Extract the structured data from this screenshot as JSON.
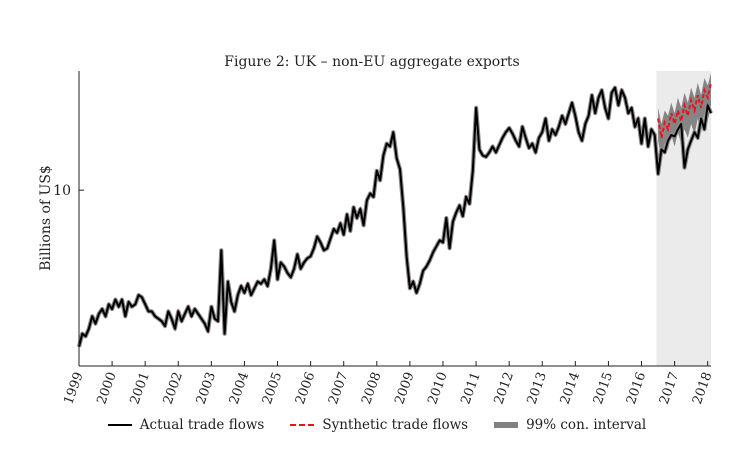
{
  "chart_data": {
    "type": "line",
    "title": "Figure 2: UK – non-EU aggregate exports",
    "ylabel": "Billions of US$",
    "xlabel": "",
    "yscale": "log",
    "ylim": [
      5.9,
      14.3
    ],
    "xlim": [
      1999.0,
      2018.1
    ],
    "y_tick_values": [
      10
    ],
    "y_tick_labels": [
      "10"
    ],
    "x_ticks": [
      {
        "value": 1999,
        "label": "1999"
      },
      {
        "value": 2000,
        "label": "2000"
      },
      {
        "value": 2001,
        "label": "2001"
      },
      {
        "value": 2002,
        "label": "2002"
      },
      {
        "value": 2003,
        "label": "2003"
      },
      {
        "value": 2004,
        "label": "2004"
      },
      {
        "value": 2005,
        "label": "2005"
      },
      {
        "value": 2006,
        "label": "2006"
      },
      {
        "value": 2007,
        "label": "2007"
      },
      {
        "value": 2008,
        "label": "2008"
      },
      {
        "value": 2009,
        "label": "2009"
      },
      {
        "value": 2010,
        "label": "2010"
      },
      {
        "value": 2011,
        "label": "2011"
      },
      {
        "value": 2012,
        "label": "2012"
      },
      {
        "value": 2013,
        "label": "2013"
      },
      {
        "value": 2014,
        "label": "2014"
      },
      {
        "value": 2015,
        "label": "2015"
      },
      {
        "value": 2016,
        "label": "2016"
      },
      {
        "value": 2017,
        "label": "2017"
      },
      {
        "value": 2018,
        "label": "2018"
      }
    ],
    "shaded_region": {
      "x_start": 2016.45,
      "x_end": 2018.1,
      "color": "#ebebeb"
    },
    "colors": {
      "actual": "#000000",
      "synthetic": "#e8141c",
      "band": "#7f7f7f"
    },
    "series": [
      {
        "name": "Actual trade flows",
        "style": "solid",
        "points": [
          [
            1999.0,
            6.25
          ],
          [
            1999.1,
            6.5
          ],
          [
            1999.2,
            6.45
          ],
          [
            1999.3,
            6.6
          ],
          [
            1999.4,
            6.85
          ],
          [
            1999.5,
            6.7
          ],
          [
            1999.6,
            6.9
          ],
          [
            1999.7,
            7.0
          ],
          [
            1999.8,
            6.85
          ],
          [
            1999.9,
            7.1
          ],
          [
            2000.0,
            7.0
          ],
          [
            2000.1,
            7.2
          ],
          [
            2000.2,
            7.05
          ],
          [
            2000.3,
            7.2
          ],
          [
            2000.4,
            6.85
          ],
          [
            2000.5,
            7.15
          ],
          [
            2000.6,
            7.05
          ],
          [
            2000.7,
            7.1
          ],
          [
            2000.8,
            7.3
          ],
          [
            2000.9,
            7.25
          ],
          [
            2001.0,
            7.1
          ],
          [
            2001.1,
            6.95
          ],
          [
            2001.2,
            6.95
          ],
          [
            2001.3,
            6.85
          ],
          [
            2001.4,
            6.8
          ],
          [
            2001.5,
            6.75
          ],
          [
            2001.6,
            6.65
          ],
          [
            2001.7,
            6.95
          ],
          [
            2001.8,
            6.8
          ],
          [
            2001.9,
            6.6
          ],
          [
            2002.0,
            6.95
          ],
          [
            2002.1,
            6.75
          ],
          [
            2002.2,
            6.9
          ],
          [
            2002.3,
            7.05
          ],
          [
            2002.4,
            6.85
          ],
          [
            2002.5,
            7.0
          ],
          [
            2002.6,
            6.9
          ],
          [
            2002.7,
            6.8
          ],
          [
            2002.8,
            6.7
          ],
          [
            2002.9,
            6.55
          ],
          [
            2003.0,
            7.05
          ],
          [
            2003.1,
            6.8
          ],
          [
            2003.2,
            6.75
          ],
          [
            2003.3,
            8.35
          ],
          [
            2003.4,
            6.5
          ],
          [
            2003.5,
            7.6
          ],
          [
            2003.6,
            7.15
          ],
          [
            2003.7,
            6.95
          ],
          [
            2003.8,
            7.3
          ],
          [
            2003.9,
            7.5
          ],
          [
            2004.0,
            7.35
          ],
          [
            2004.1,
            7.55
          ],
          [
            2004.2,
            7.3
          ],
          [
            2004.3,
            7.45
          ],
          [
            2004.4,
            7.6
          ],
          [
            2004.5,
            7.55
          ],
          [
            2004.6,
            7.65
          ],
          [
            2004.7,
            7.5
          ],
          [
            2004.8,
            7.9
          ],
          [
            2004.9,
            8.6
          ],
          [
            2005.0,
            7.65
          ],
          [
            2005.1,
            8.05
          ],
          [
            2005.2,
            7.95
          ],
          [
            2005.3,
            7.8
          ],
          [
            2005.4,
            7.7
          ],
          [
            2005.5,
            7.9
          ],
          [
            2005.6,
            8.25
          ],
          [
            2005.7,
            7.9
          ],
          [
            2005.8,
            8.05
          ],
          [
            2005.9,
            8.15
          ],
          [
            2006.0,
            8.2
          ],
          [
            2006.1,
            8.4
          ],
          [
            2006.2,
            8.7
          ],
          [
            2006.3,
            8.55
          ],
          [
            2006.4,
            8.35
          ],
          [
            2006.5,
            8.4
          ],
          [
            2006.6,
            8.65
          ],
          [
            2006.7,
            8.9
          ],
          [
            2006.8,
            8.8
          ],
          [
            2006.9,
            9.05
          ],
          [
            2007.0,
            8.75
          ],
          [
            2007.1,
            9.3
          ],
          [
            2007.2,
            8.85
          ],
          [
            2007.3,
            9.5
          ],
          [
            2007.4,
            9.2
          ],
          [
            2007.5,
            9.45
          ],
          [
            2007.6,
            9.0
          ],
          [
            2007.7,
            9.7
          ],
          [
            2007.8,
            9.9
          ],
          [
            2007.9,
            9.8
          ],
          [
            2008.0,
            10.6
          ],
          [
            2008.1,
            10.3
          ],
          [
            2008.2,
            11.1
          ],
          [
            2008.3,
            11.5
          ],
          [
            2008.4,
            11.4
          ],
          [
            2008.5,
            11.9
          ],
          [
            2008.6,
            11.0
          ],
          [
            2008.7,
            10.65
          ],
          [
            2008.8,
            9.5
          ],
          [
            2008.9,
            8.2
          ],
          [
            2009.0,
            7.45
          ],
          [
            2009.1,
            7.6
          ],
          [
            2009.2,
            7.35
          ],
          [
            2009.3,
            7.55
          ],
          [
            2009.4,
            7.85
          ],
          [
            2009.5,
            7.95
          ],
          [
            2009.6,
            8.1
          ],
          [
            2009.7,
            8.3
          ],
          [
            2009.8,
            8.45
          ],
          [
            2009.9,
            8.6
          ],
          [
            2010.0,
            8.55
          ],
          [
            2010.1,
            9.2
          ],
          [
            2010.2,
            8.4
          ],
          [
            2010.3,
            9.1
          ],
          [
            2010.4,
            9.35
          ],
          [
            2010.5,
            9.55
          ],
          [
            2010.6,
            9.25
          ],
          [
            2010.7,
            9.8
          ],
          [
            2010.8,
            9.6
          ],
          [
            2010.9,
            10.6
          ],
          [
            2011.0,
            12.8
          ],
          [
            2011.1,
            11.3
          ],
          [
            2011.2,
            11.1
          ],
          [
            2011.3,
            11.05
          ],
          [
            2011.4,
            11.2
          ],
          [
            2011.5,
            11.4
          ],
          [
            2011.6,
            11.2
          ],
          [
            2011.7,
            11.45
          ],
          [
            2011.8,
            11.7
          ],
          [
            2011.9,
            11.9
          ],
          [
            2012.0,
            12.05
          ],
          [
            2012.1,
            11.85
          ],
          [
            2012.2,
            11.6
          ],
          [
            2012.3,
            11.4
          ],
          [
            2012.4,
            12.1
          ],
          [
            2012.5,
            11.7
          ],
          [
            2012.6,
            11.35
          ],
          [
            2012.7,
            11.5
          ],
          [
            2012.8,
            11.2
          ],
          [
            2012.9,
            11.7
          ],
          [
            2013.0,
            11.9
          ],
          [
            2013.1,
            12.4
          ],
          [
            2013.2,
            11.6
          ],
          [
            2013.3,
            12.0
          ],
          [
            2013.4,
            11.8
          ],
          [
            2013.5,
            12.1
          ],
          [
            2013.6,
            12.5
          ],
          [
            2013.7,
            12.2
          ],
          [
            2013.8,
            12.6
          ],
          [
            2013.9,
            13.0
          ],
          [
            2014.0,
            12.5
          ],
          [
            2014.1,
            11.9
          ],
          [
            2014.2,
            11.6
          ],
          [
            2014.3,
            12.2
          ],
          [
            2014.4,
            12.5
          ],
          [
            2014.5,
            13.3
          ],
          [
            2014.6,
            12.6
          ],
          [
            2014.7,
            13.2
          ],
          [
            2014.8,
            13.5
          ],
          [
            2014.9,
            12.8
          ],
          [
            2015.0,
            12.4
          ],
          [
            2015.1,
            13.4
          ],
          [
            2015.2,
            13.6
          ],
          [
            2015.3,
            12.9
          ],
          [
            2015.4,
            13.5
          ],
          [
            2015.5,
            13.2
          ],
          [
            2015.6,
            12.6
          ],
          [
            2015.7,
            12.8
          ],
          [
            2015.8,
            12.1
          ],
          [
            2015.9,
            12.4
          ],
          [
            2016.0,
            11.5
          ],
          [
            2016.1,
            12.4
          ],
          [
            2016.2,
            11.4
          ],
          [
            2016.3,
            12.0
          ],
          [
            2016.4,
            11.8
          ],
          [
            2016.5,
            10.5
          ],
          [
            2016.6,
            11.3
          ],
          [
            2016.7,
            11.2
          ],
          [
            2016.8,
            11.6
          ],
          [
            2016.9,
            11.8
          ],
          [
            2017.0,
            11.75
          ],
          [
            2017.1,
            12.0
          ],
          [
            2017.2,
            12.2
          ],
          [
            2017.3,
            10.7
          ],
          [
            2017.4,
            11.3
          ],
          [
            2017.5,
            11.6
          ],
          [
            2017.6,
            11.9
          ],
          [
            2017.7,
            11.7
          ],
          [
            2017.8,
            12.4
          ],
          [
            2017.9,
            12.0
          ],
          [
            2018.0,
            12.9
          ],
          [
            2018.1,
            12.6
          ]
        ]
      },
      {
        "name": "Synthetic trade flows",
        "style": "dashed",
        "points": [
          [
            2016.5,
            12.4
          ],
          [
            2016.6,
            11.7
          ],
          [
            2016.7,
            12.25
          ],
          [
            2016.8,
            12.0
          ],
          [
            2016.9,
            12.6
          ],
          [
            2017.0,
            12.2
          ],
          [
            2017.1,
            12.7
          ],
          [
            2017.2,
            12.3
          ],
          [
            2017.3,
            12.9
          ],
          [
            2017.4,
            12.5
          ],
          [
            2017.5,
            13.1
          ],
          [
            2017.6,
            12.7
          ],
          [
            2017.7,
            13.3
          ],
          [
            2017.8,
            12.8
          ],
          [
            2017.9,
            13.5
          ],
          [
            2018.0,
            13.2
          ],
          [
            2018.1,
            13.8
          ]
        ]
      },
      {
        "name": "99% con. interval",
        "style": "band",
        "lower": [
          [
            2016.5,
            11.6
          ],
          [
            2016.6,
            11.0
          ],
          [
            2016.7,
            11.5
          ],
          [
            2016.8,
            11.3
          ],
          [
            2016.9,
            11.8
          ],
          [
            2017.0,
            11.4
          ],
          [
            2017.1,
            11.9
          ],
          [
            2017.2,
            11.5
          ],
          [
            2017.3,
            12.0
          ],
          [
            2017.4,
            11.7
          ],
          [
            2017.5,
            12.2
          ],
          [
            2017.6,
            11.8
          ],
          [
            2017.7,
            12.4
          ],
          [
            2017.8,
            11.9
          ],
          [
            2017.9,
            12.6
          ],
          [
            2018.0,
            12.3
          ],
          [
            2018.1,
            12.9
          ]
        ],
        "upper": [
          [
            2016.5,
            12.8
          ],
          [
            2016.6,
            12.2
          ],
          [
            2016.7,
            12.7
          ],
          [
            2016.8,
            12.5
          ],
          [
            2016.9,
            13.0
          ],
          [
            2017.0,
            12.6
          ],
          [
            2017.1,
            13.2
          ],
          [
            2017.2,
            12.8
          ],
          [
            2017.3,
            13.4
          ],
          [
            2017.4,
            13.0
          ],
          [
            2017.5,
            13.6
          ],
          [
            2017.6,
            13.2
          ],
          [
            2017.7,
            13.8
          ],
          [
            2017.8,
            13.3
          ],
          [
            2017.9,
            14.0
          ],
          [
            2018.0,
            13.7
          ],
          [
            2018.1,
            14.2
          ]
        ]
      }
    ],
    "legend": {
      "placement": "bottom-center",
      "entries": [
        {
          "label": "Actual trade flows",
          "style": "solid"
        },
        {
          "label": "Synthetic trade flows",
          "style": "dashed"
        },
        {
          "label": "99% con. interval",
          "style": "band"
        }
      ]
    }
  }
}
